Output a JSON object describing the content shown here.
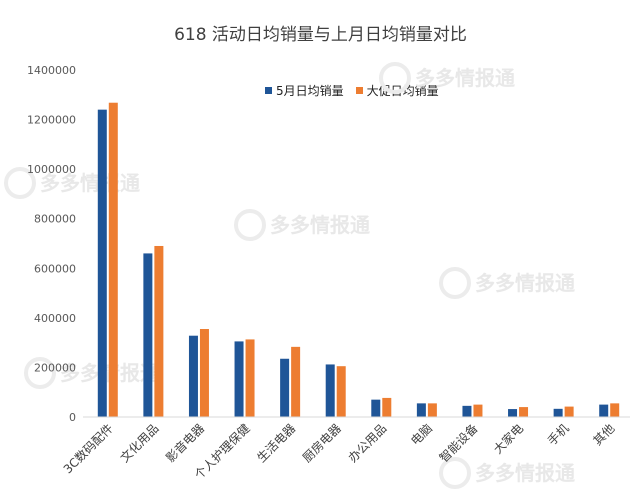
{
  "chart_data": {
    "type": "bar",
    "title": "618  活动日均销量与上月日均销量对比",
    "categories": [
      "3C数码配件",
      "文化用品",
      "影音电器",
      "个人护理保健",
      "生活电器",
      "厨房电器",
      "办公用品",
      "电脑",
      "智能设备",
      "大家电",
      "手机",
      "其他"
    ],
    "series": [
      {
        "name": "5月日均销量",
        "color": "#1f5597",
        "values": [
          1240000,
          660000,
          328000,
          305000,
          235000,
          212000,
          70000,
          55000,
          45000,
          32000,
          33000,
          50000
        ]
      },
      {
        "name": "大促日均销量",
        "color": "#ed7d31",
        "values": [
          1268000,
          690000,
          355000,
          313000,
          283000,
          205000,
          77000,
          55000,
          50000,
          40000,
          42000,
          55000
        ]
      }
    ],
    "yticks": [
      "0",
      "200000",
      "400000",
      "600000",
      "800000",
      "1000000",
      "1200000",
      "1400000"
    ],
    "ylim": [
      0,
      1400000
    ],
    "legend_position": "top-center",
    "grid": false
  },
  "watermark": "多多情报通"
}
